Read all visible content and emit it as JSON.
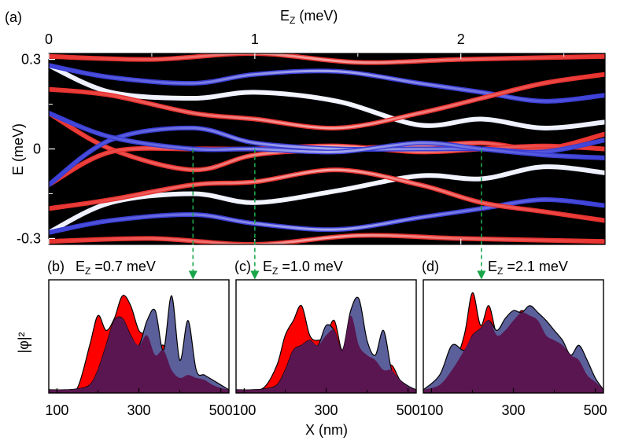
{
  "figure": {
    "panel_a_label": "(a)",
    "panel_b_label": "(b)",
    "panel_c_label": "(c)",
    "panel_d_label": "(d)"
  },
  "colors": {
    "band_red": "#e8322f",
    "band_blue": "#3b3fd6",
    "background": "#000000",
    "density_red": "#ff0000",
    "density_blue": "#5b5f9a",
    "density_overlap": "#5a1650",
    "arrow_green": "#19a64a"
  },
  "chart_data": [
    {
      "type": "line",
      "panel": "a",
      "xlabel_main": "E",
      "xlabel_sub": "Z",
      "xlabel_unit": " (meV)",
      "ylabel": "E (meV)",
      "xlim": [
        0,
        2.7
      ],
      "ylim": [
        -0.32,
        0.32
      ],
      "x_ticks": [
        "0",
        "1",
        "2"
      ],
      "y_ticks": [
        "0.3",
        "0",
        "-0.3"
      ],
      "series": [
        {
          "color": "red",
          "x": [
            0,
            0.3,
            0.7,
            1.0,
            1.4,
            1.8,
            2.1,
            2.4,
            2.7
          ],
          "y": [
            0.12,
            0.0,
            -0.07,
            -0.02,
            0.0,
            0.01,
            0.02,
            0.0,
            0.05
          ]
        },
        {
          "color": "red",
          "x": [
            0,
            0.3,
            0.7,
            1.0,
            1.4,
            1.8,
            2.1,
            2.4,
            2.7
          ],
          "y": [
            -0.12,
            -0.01,
            0.0,
            0.0,
            0.01,
            -0.01,
            0.0,
            0.01,
            0.0
          ]
        },
        {
          "color": "blue",
          "x": [
            0,
            0.3,
            0.7,
            1.0,
            1.4,
            1.8,
            2.1,
            2.4,
            2.7
          ],
          "y": [
            -0.12,
            0.03,
            0.07,
            0.02,
            0.0,
            0.0,
            0.0,
            -0.01,
            0.03
          ]
        },
        {
          "color": "blue",
          "x": [
            0,
            0.3,
            0.7,
            1.0,
            1.4,
            1.8,
            2.1,
            2.4,
            2.7
          ],
          "y": [
            0.12,
            0.04,
            0.0,
            0.0,
            -0.01,
            0.02,
            0.0,
            -0.02,
            -0.03
          ]
        },
        {
          "color": "white",
          "x": [
            0,
            0.3,
            0.7,
            1.0,
            1.4,
            1.8,
            2.1,
            2.4,
            2.7
          ],
          "y": [
            0.28,
            0.19,
            0.17,
            0.19,
            0.16,
            0.08,
            0.1,
            0.07,
            0.09
          ]
        },
        {
          "color": "blue",
          "x": [
            0,
            0.3,
            0.7,
            1.0,
            1.4,
            1.8,
            2.1,
            2.4,
            2.7
          ],
          "y": [
            0.28,
            0.24,
            0.22,
            0.25,
            0.26,
            0.22,
            0.19,
            0.16,
            0.18
          ]
        },
        {
          "color": "red",
          "x": [
            0,
            0.3,
            0.7,
            1.0,
            1.4,
            1.8,
            2.1,
            2.4,
            2.7
          ],
          "y": [
            0.2,
            0.18,
            0.12,
            0.1,
            0.07,
            0.12,
            0.17,
            0.22,
            0.25
          ]
        },
        {
          "color": "white",
          "x": [
            0,
            0.3,
            0.7,
            1.0,
            1.4,
            1.8,
            2.1,
            2.4,
            2.7
          ],
          "y": [
            -0.28,
            -0.18,
            -0.15,
            -0.18,
            -0.14,
            -0.09,
            -0.1,
            -0.06,
            -0.08
          ]
        },
        {
          "color": "blue",
          "x": [
            0,
            0.3,
            0.7,
            1.0,
            1.4,
            1.8,
            2.1,
            2.4,
            2.7
          ],
          "y": [
            -0.28,
            -0.24,
            -0.22,
            -0.25,
            -0.27,
            -0.23,
            -0.2,
            -0.17,
            -0.19
          ]
        },
        {
          "color": "red",
          "x": [
            0,
            0.3,
            0.7,
            1.0,
            1.4,
            1.8,
            2.1,
            2.4,
            2.7
          ],
          "y": [
            -0.2,
            -0.17,
            -0.12,
            -0.11,
            -0.07,
            -0.12,
            -0.18,
            -0.21,
            -0.24
          ]
        },
        {
          "color": "red",
          "x": [
            0,
            0.5,
            1.0,
            1.5,
            2.0,
            2.7
          ],
          "y": [
            0.31,
            0.3,
            0.32,
            0.29,
            0.3,
            0.31
          ]
        },
        {
          "color": "red",
          "x": [
            0,
            0.5,
            1.0,
            1.5,
            2.0,
            2.7
          ],
          "y": [
            -0.31,
            -0.3,
            -0.32,
            -0.29,
            -0.3,
            -0.31
          ]
        }
      ],
      "markers_x": [
        0.7,
        1.0,
        2.1
      ]
    },
    {
      "type": "area",
      "panel": "b",
      "title_pre": "E",
      "title_sub": "Z",
      "title_post": " =0.7 meV",
      "ylabel": "|φ|²",
      "xlabel": "X (nm)",
      "x_ticks": [
        "100",
        "300",
        "500"
      ],
      "xlim": [
        80,
        520
      ],
      "x": [
        80,
        120,
        150,
        180,
        200,
        220,
        240,
        260,
        280,
        300,
        320,
        340,
        360,
        380,
        400,
        420,
        440,
        460,
        480,
        500,
        520
      ],
      "series": [
        {
          "name": "",
          "color": "red",
          "values": [
            0,
            0,
            0.02,
            0.45,
            0.75,
            0.6,
            0.72,
            0.95,
            0.85,
            0.6,
            0.55,
            0.35,
            0.45,
            0.2,
            0.12,
            0.15,
            0.12,
            0.1,
            0.05,
            0.02,
            0
          ]
        },
        {
          "name": "",
          "color": "blue",
          "values": [
            0,
            0,
            0.01,
            0.05,
            0.2,
            0.45,
            0.7,
            0.72,
            0.55,
            0.45,
            0.7,
            0.8,
            0.4,
            0.95,
            0.3,
            0.7,
            0.2,
            0.15,
            0.1,
            0.05,
            0
          ]
        }
      ]
    },
    {
      "type": "area",
      "panel": "c",
      "title_pre": "E",
      "title_sub": "Z",
      "title_post": " =1.0 meV",
      "x_ticks": [
        "100",
        "300",
        "500"
      ],
      "xlim": [
        80,
        520
      ],
      "x": [
        80,
        120,
        150,
        180,
        200,
        220,
        240,
        260,
        280,
        300,
        320,
        340,
        360,
        380,
        400,
        420,
        440,
        460,
        480,
        500,
        520
      ],
      "series": [
        {
          "name": "",
          "color": "red",
          "values": [
            0,
            0,
            0.03,
            0.25,
            0.55,
            0.7,
            0.85,
            0.55,
            0.5,
            0.55,
            0.7,
            0.4,
            0.75,
            0.45,
            0.35,
            0.3,
            0.2,
            0.25,
            0.1,
            0.03,
            0
          ]
        },
        {
          "name": "",
          "color": "blue",
          "values": [
            0,
            0,
            0.01,
            0.05,
            0.2,
            0.4,
            0.45,
            0.5,
            0.45,
            0.65,
            0.6,
            0.4,
            0.8,
            0.92,
            0.5,
            0.35,
            0.6,
            0.2,
            0.1,
            0.04,
            0
          ]
        }
      ]
    },
    {
      "type": "area",
      "panel": "d",
      "title_pre": "E",
      "title_sub": "Z",
      "title_post": " =2.1 meV",
      "x_ticks": [
        "100",
        "300",
        "500"
      ],
      "xlim": [
        80,
        520
      ],
      "x": [
        80,
        120,
        150,
        180,
        200,
        220,
        240,
        260,
        280,
        300,
        320,
        340,
        360,
        380,
        400,
        420,
        440,
        460,
        480,
        500,
        520
      ],
      "series": [
        {
          "name": "",
          "color": "red",
          "values": [
            0,
            0.05,
            0.2,
            0.55,
            0.98,
            0.65,
            0.85,
            0.55,
            0.6,
            0.7,
            0.8,
            0.75,
            0.7,
            0.55,
            0.5,
            0.45,
            0.35,
            0.3,
            0.15,
            0.08,
            0
          ]
        },
        {
          "name": "",
          "color": "blue",
          "values": [
            0,
            0.15,
            0.45,
            0.4,
            0.55,
            0.62,
            0.7,
            0.6,
            0.72,
            0.8,
            0.78,
            0.85,
            0.78,
            0.7,
            0.6,
            0.5,
            0.35,
            0.45,
            0.3,
            0.12,
            0
          ]
        }
      ]
    }
  ]
}
